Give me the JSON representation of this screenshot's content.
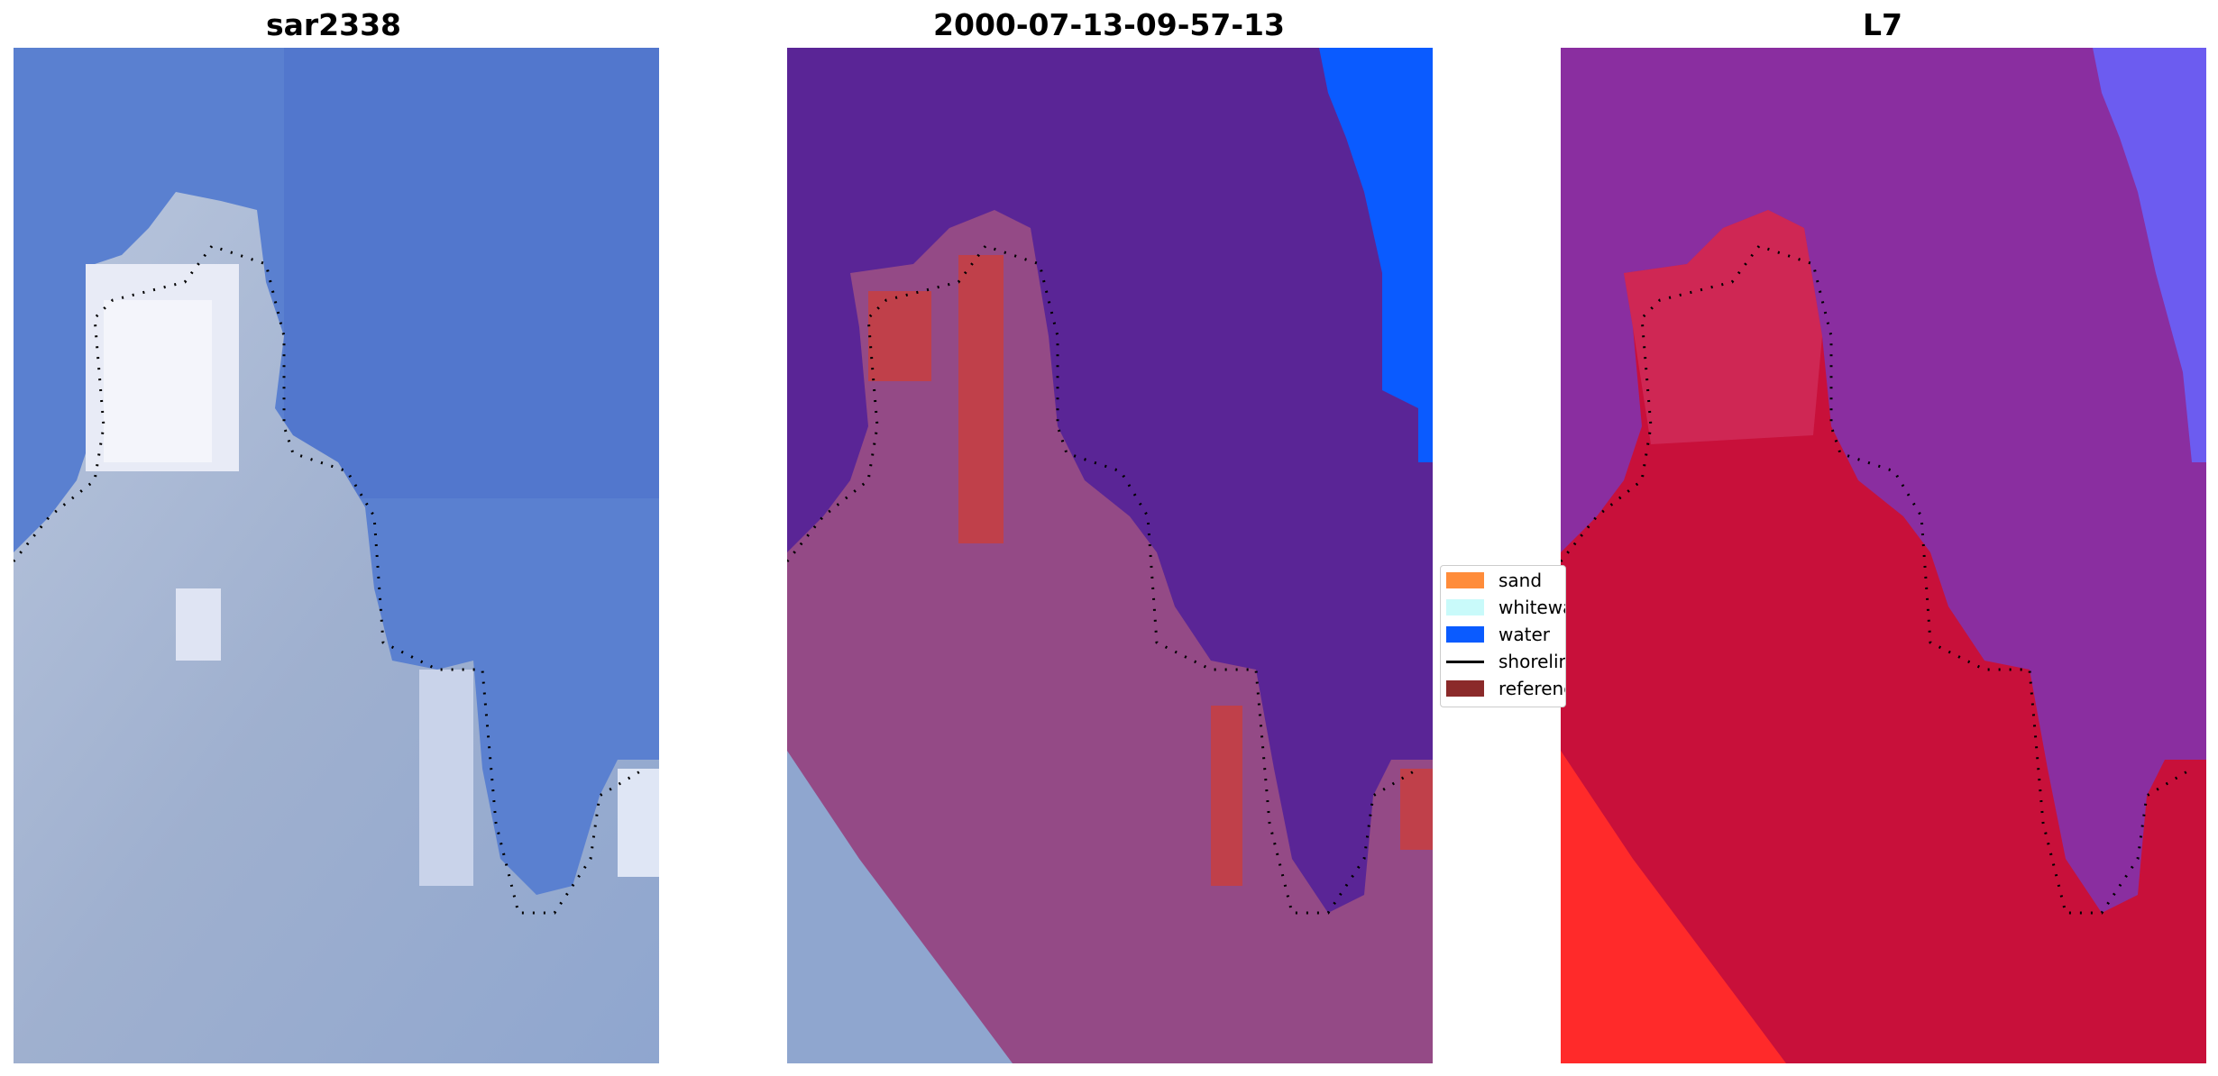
{
  "panels": [
    {
      "title": "sar2338",
      "image": "rgb-satellite-image"
    },
    {
      "title": "2000-07-13-09-57-13",
      "image": "classified-image"
    },
    {
      "title": "L7",
      "image": "probability-image"
    }
  ],
  "legend": {
    "items": [
      {
        "label": "sand",
        "color": "#ff8c3a",
        "kind": "patch"
      },
      {
        "label": "whitewater",
        "color": "#c9fafa",
        "kind": "patch"
      },
      {
        "label": "water",
        "color": "#0a5bff",
        "kind": "patch"
      },
      {
        "label": "shoreline",
        "color": "#000000",
        "kind": "line"
      },
      {
        "label": "reference",
        "color": "#8b2a2a",
        "kind": "patch"
      }
    ]
  },
  "colors": {
    "sea_blue": "#5a80d0",
    "land_grey": "#a8b7d2",
    "class_water": "#5a2596",
    "class_land": "#944a86",
    "class_reference": "#c0404a",
    "prob_land": "#c8103a",
    "prob_sea": "#8a2ea0"
  }
}
